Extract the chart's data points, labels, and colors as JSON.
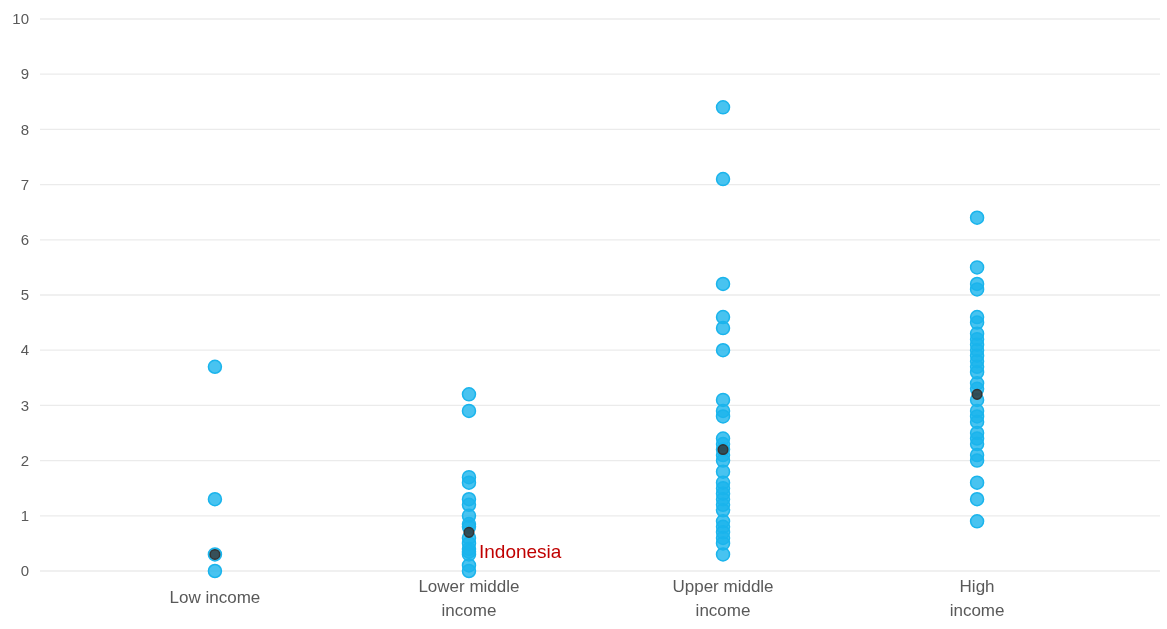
{
  "chart_data": {
    "type": "scatter",
    "categories": [
      "Low income",
      "Lower middle income",
      "Upper middle income",
      "High income"
    ],
    "ylim": [
      0,
      10
    ],
    "yticks": [
      0,
      1,
      2,
      3,
      4,
      5,
      6,
      7,
      8,
      9,
      10
    ],
    "grid": "y",
    "marker": "circle",
    "series": [
      {
        "color": "#1ab4ec",
        "x": [
          "Low income",
          "Low income",
          "Low income",
          "Low income",
          "Lower middle income",
          "Lower middle income",
          "Lower middle income",
          "Lower middle income",
          "Lower middle income",
          "Lower middle income",
          "Lower middle income",
          "Lower middle income",
          "Lower middle income",
          "Lower middle income",
          "Lower middle income",
          "Lower middle income",
          "Lower middle income",
          "Lower middle income",
          "Lower middle income",
          "Lower middle income",
          "Upper middle income",
          "Upper middle income",
          "Upper middle income",
          "Upper middle income",
          "Upper middle income",
          "Upper middle income",
          "Upper middle income",
          "Upper middle income",
          "Upper middle income",
          "Upper middle income",
          "Upper middle income",
          "Upper middle income",
          "Upper middle income",
          "Upper middle income",
          "Upper middle income",
          "Upper middle income",
          "Upper middle income",
          "Upper middle income",
          "Upper middle income",
          "Upper middle income",
          "Upper middle income",
          "Upper middle income",
          "Upper middle income",
          "Upper middle income",
          "Upper middle income",
          "Upper middle income",
          "Upper middle income",
          "High income",
          "High income",
          "High income",
          "High income",
          "High income",
          "High income",
          "High income",
          "High income",
          "High income",
          "High income",
          "High income",
          "High income",
          "High income",
          "High income",
          "High income",
          "High income",
          "High income",
          "High income",
          "High income",
          "High income",
          "High income",
          "High income",
          "High income",
          "High income",
          "High income",
          "High income",
          "High income",
          "High income"
        ],
        "values": [
          3.7,
          1.3,
          0.0,
          0.3,
          3.2,
          2.9,
          1.7,
          1.6,
          1.2,
          1.3,
          1.0,
          0.85,
          0.8,
          0.6,
          0.5,
          0.4,
          0.3,
          0.35,
          0.1,
          0.0,
          8.4,
          7.1,
          5.2,
          4.6,
          4.4,
          4.0,
          3.1,
          2.9,
          2.8,
          2.4,
          2.3,
          2.2,
          2.1,
          2.0,
          1.8,
          1.6,
          1.5,
          1.4,
          1.3,
          1.2,
          1.1,
          0.9,
          0.8,
          0.7,
          0.6,
          0.5,
          0.3,
          6.4,
          5.5,
          5.1,
          5.2,
          4.5,
          4.6,
          4.3,
          4.2,
          4.1,
          4.0,
          3.9,
          3.8,
          3.7,
          3.6,
          3.4,
          3.3,
          3.1,
          2.9,
          2.8,
          2.7,
          2.5,
          2.4,
          2.3,
          2.1,
          2.0,
          1.6,
          1.3,
          0.9
        ]
      },
      {
        "color": "#333333",
        "x": [
          "Low income",
          "Lower middle income",
          "Upper middle income",
          "High income"
        ],
        "values": [
          0.3,
          0.7,
          2.2,
          3.2
        ]
      }
    ],
    "annotations": [
      {
        "text": "Indonesia",
        "x": "Lower middle income",
        "y": 0.35
      }
    ]
  }
}
